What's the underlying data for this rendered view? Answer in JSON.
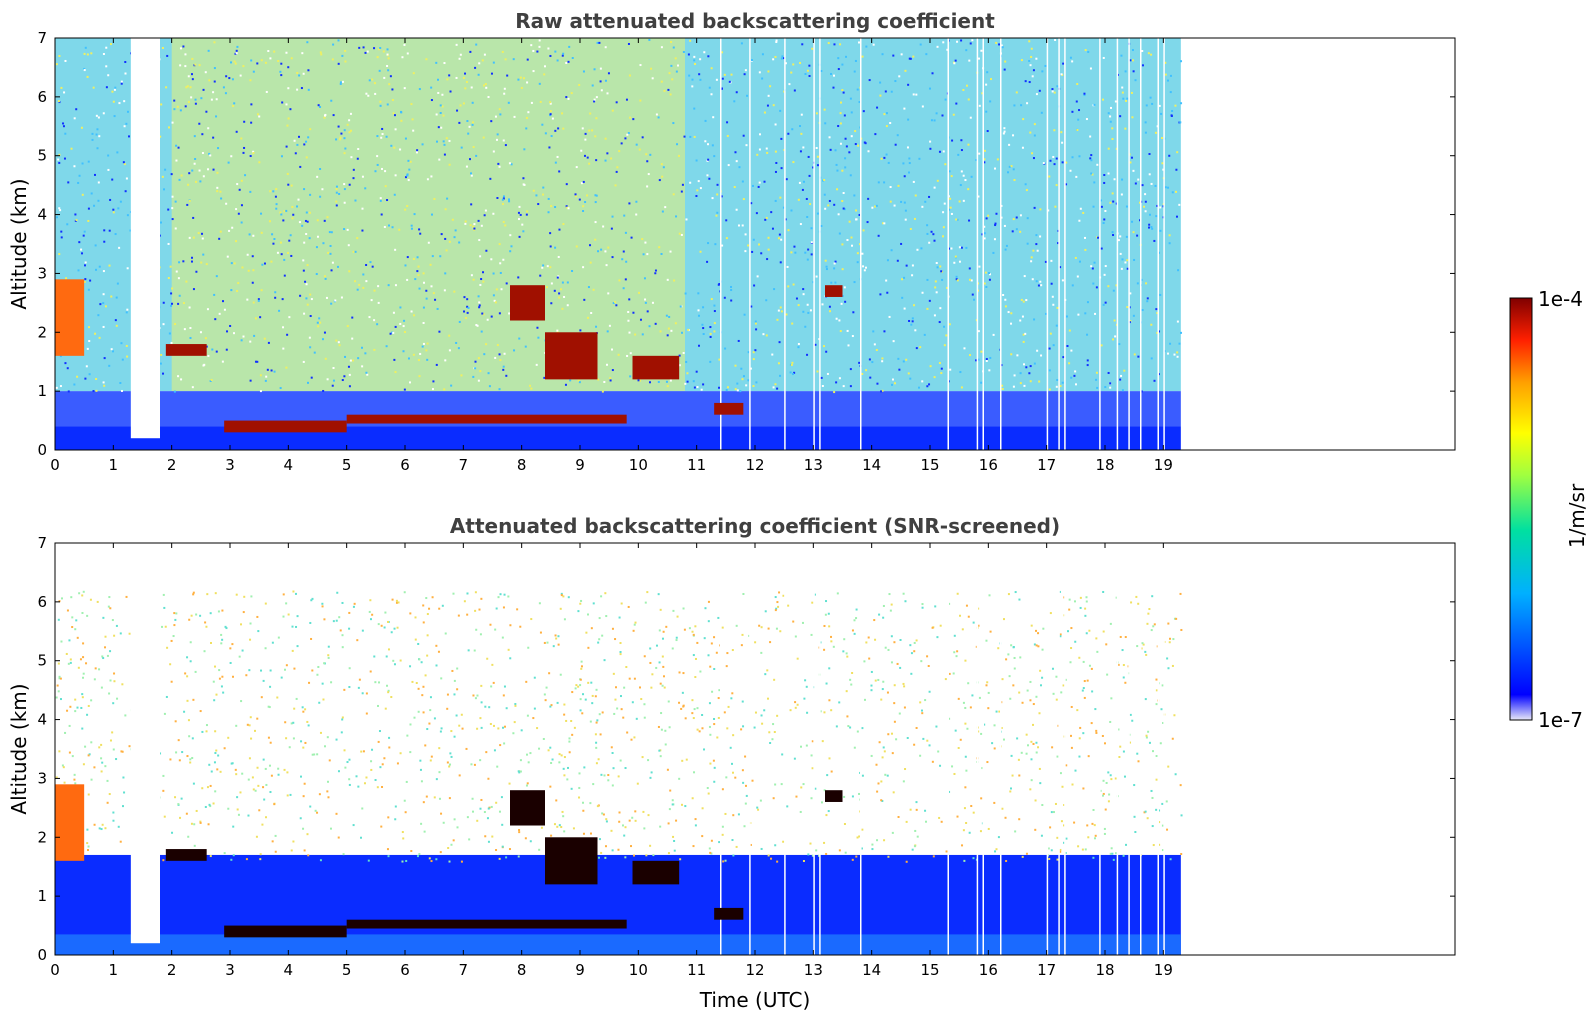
{
  "chart_data": [
    {
      "type": "heatmap",
      "title": "Raw attenuated backscattering coefficient",
      "xlabel": "",
      "ylabel": "Altitude (km)",
      "xlim": [
        0,
        24
      ],
      "ylim": [
        0,
        7
      ],
      "x_ticks": [
        "0",
        "1",
        "2",
        "3",
        "4",
        "5",
        "6",
        "7",
        "8",
        "9",
        "10",
        "11",
        "12",
        "13",
        "14",
        "15",
        "16",
        "17",
        "18",
        "19"
      ],
      "y_ticks": [
        "0",
        "1",
        "2",
        "3",
        "4",
        "5",
        "6",
        "7"
      ],
      "data_end_time": 19.3,
      "screened": false,
      "features": [
        {
          "kind": "aerosol-plume",
          "t": [
            0.0,
            0.5
          ],
          "alt": [
            1.6,
            2.9
          ]
        },
        {
          "kind": "blank-gap",
          "t": [
            1.3,
            1.8
          ],
          "alt": [
            0.2,
            7.0
          ]
        },
        {
          "kind": "cloud-layer",
          "t": [
            1.9,
            2.6
          ],
          "alt": [
            1.6,
            1.8
          ]
        },
        {
          "kind": "cloud-layer",
          "t": [
            2.9,
            5.0
          ],
          "alt": [
            0.3,
            0.5
          ]
        },
        {
          "kind": "cloud-layer",
          "t": [
            5.0,
            9.8
          ],
          "alt": [
            0.45,
            0.6
          ]
        },
        {
          "kind": "cloud-layer",
          "t": [
            7.8,
            8.4
          ],
          "alt": [
            2.2,
            2.8
          ]
        },
        {
          "kind": "cloud-layer",
          "t": [
            8.4,
            9.3
          ],
          "alt": [
            1.2,
            2.0
          ]
        },
        {
          "kind": "cloud-layer",
          "t": [
            9.9,
            10.7
          ],
          "alt": [
            1.2,
            1.6
          ]
        },
        {
          "kind": "cloud-layer",
          "t": [
            11.3,
            11.8
          ],
          "alt": [
            0.6,
            0.8
          ]
        },
        {
          "kind": "cloud-layer",
          "t": [
            13.2,
            13.5
          ],
          "alt": [
            2.6,
            2.8
          ]
        }
      ]
    },
    {
      "type": "heatmap",
      "title": "Attenuated backscattering coefficient (SNR-screened)",
      "xlabel": "Time (UTC)",
      "ylabel": "Altitude (km)",
      "xlim": [
        0,
        24
      ],
      "ylim": [
        0,
        7
      ],
      "x_ticks": [
        "0",
        "1",
        "2",
        "3",
        "4",
        "5",
        "6",
        "7",
        "8",
        "9",
        "10",
        "11",
        "12",
        "13",
        "14",
        "15",
        "16",
        "17",
        "18",
        "19"
      ],
      "y_ticks": [
        "0",
        "1",
        "2",
        "3",
        "4",
        "5",
        "6",
        "7"
      ],
      "data_end_time": 19.3,
      "screened": true,
      "features": [
        {
          "kind": "aerosol-plume",
          "t": [
            0.0,
            0.5
          ],
          "alt": [
            1.6,
            2.9
          ]
        },
        {
          "kind": "blank-gap",
          "t": [
            1.3,
            1.8
          ],
          "alt": [
            0.2,
            7.0
          ]
        },
        {
          "kind": "cloud-layer",
          "t": [
            1.9,
            2.6
          ],
          "alt": [
            1.6,
            1.8
          ]
        },
        {
          "kind": "cloud-layer",
          "t": [
            2.9,
            5.0
          ],
          "alt": [
            0.3,
            0.5
          ]
        },
        {
          "kind": "cloud-layer",
          "t": [
            5.0,
            9.8
          ],
          "alt": [
            0.45,
            0.6
          ]
        },
        {
          "kind": "cloud-layer",
          "t": [
            7.8,
            8.4
          ],
          "alt": [
            2.2,
            2.8
          ]
        },
        {
          "kind": "cloud-layer",
          "t": [
            8.4,
            9.3
          ],
          "alt": [
            1.2,
            2.0
          ]
        },
        {
          "kind": "cloud-layer",
          "t": [
            9.9,
            10.7
          ],
          "alt": [
            1.2,
            1.6
          ]
        },
        {
          "kind": "cloud-layer",
          "t": [
            11.3,
            11.8
          ],
          "alt": [
            0.6,
            0.8
          ]
        },
        {
          "kind": "cloud-layer",
          "t": [
            13.2,
            13.5
          ],
          "alt": [
            2.6,
            2.8
          ]
        }
      ]
    }
  ],
  "colorbar": {
    "label": "1/m/sr",
    "max_label": "1e-4",
    "min_label": "1e-7",
    "scale": "log",
    "colormap": [
      "#e8e8f8",
      "#0000ff",
      "#00b0ff",
      "#00e0a0",
      "#a0ff40",
      "#ffff00",
      "#ffa000",
      "#ff2000",
      "#800000"
    ]
  }
}
